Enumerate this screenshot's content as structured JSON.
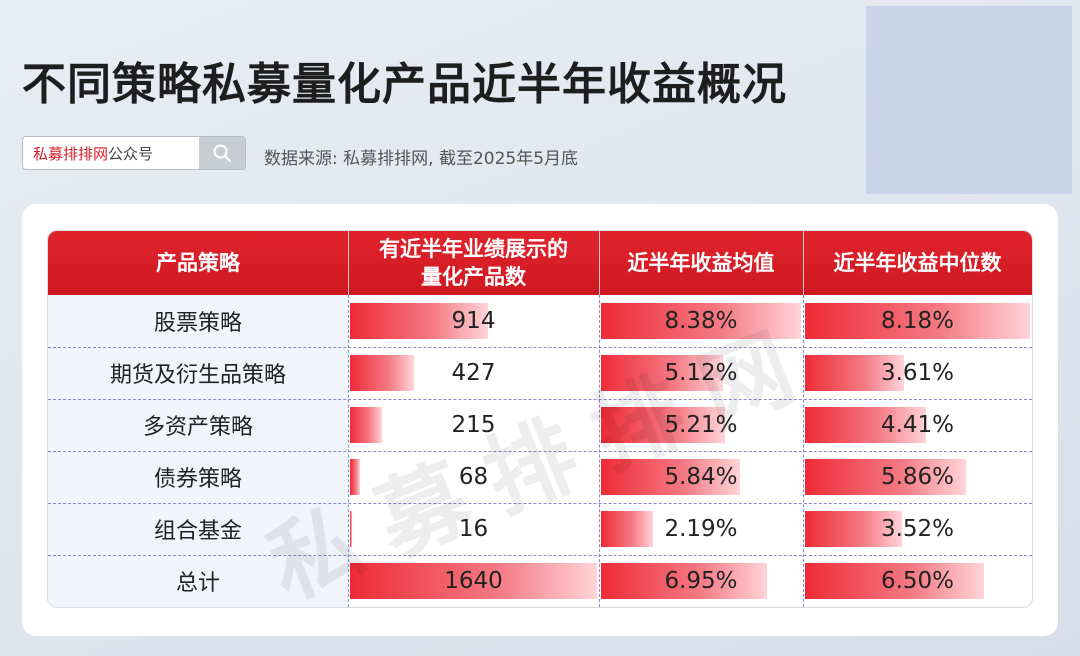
{
  "title": "不同策略私募量化产品近半年收益概况",
  "search": {
    "brand": "私募排排网",
    "suffix": "公众号",
    "icon": "search-icon"
  },
  "source": "数据来源: 私募排排网, 截至2025年5月底",
  "watermark": "私募排排网",
  "colors": {
    "header": "#d81e2a",
    "bar": "#ee2b36",
    "row_label_bg": "#f1f4fb"
  },
  "chart_data": {
    "type": "table",
    "columns": [
      "产品策略",
      "有近半年业绩展示的\n量化产品数",
      "近半年收益均值",
      "近半年收益中位数"
    ],
    "rows": [
      {
        "strategy": "股票策略",
        "count": 914,
        "count_label": "914",
        "mean": 8.38,
        "mean_label": "8.38%",
        "median": 8.18,
        "median_label": "8.18%"
      },
      {
        "strategy": "期货及衍生品策略",
        "count": 427,
        "count_label": "427",
        "mean": 5.12,
        "mean_label": "5.12%",
        "median": 3.61,
        "median_label": "3.61%"
      },
      {
        "strategy": "多资产策略",
        "count": 215,
        "count_label": "215",
        "mean": 5.21,
        "mean_label": "5.21%",
        "median": 4.41,
        "median_label": "4.41%"
      },
      {
        "strategy": "债券策略",
        "count": 68,
        "count_label": "68",
        "mean": 5.84,
        "mean_label": "5.84%",
        "median": 5.86,
        "median_label": "5.86%"
      },
      {
        "strategy": "组合基金",
        "count": 16,
        "count_label": "16",
        "mean": 2.19,
        "mean_label": "2.19%",
        "median": 3.52,
        "median_label": "3.52%"
      },
      {
        "strategy": "总计",
        "count": 1640,
        "count_label": "1640",
        "mean": 6.95,
        "mean_label": "6.95%",
        "median": 6.5,
        "median_label": "6.50%"
      }
    ]
  }
}
